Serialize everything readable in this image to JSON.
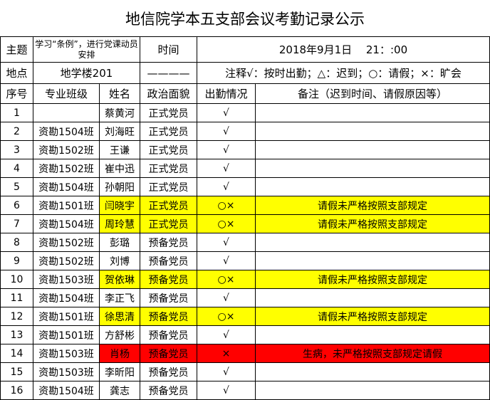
{
  "title": "地信院学本五支部会议考勤记录公示",
  "info": {
    "topic_label": "主题",
    "topic_value": "学习“条例”，进行党课动员安排",
    "time_label": "时间",
    "time_value": "2018年9月1日　 21：:00",
    "place_label": "地点",
    "place_value": "地学楼201",
    "dash": "————",
    "legend": "注释√：按时出勤；△：迟到；○：请假；×：旷会"
  },
  "headers": [
    "序号",
    "专业班级",
    "姓名",
    "政治面貌",
    "出勤情况",
    "备注（迟到时间、请假原因等）"
  ],
  "colors": {
    "highlight_yellow": "#ffff00",
    "highlight_red": "#ff0000"
  },
  "rows": [
    {
      "no": "1",
      "class": "",
      "name": "蔡黄河",
      "status": "正式党员",
      "attendance": "√",
      "remark": "",
      "highlight": ""
    },
    {
      "no": "2",
      "class": "资勘1504班",
      "name": "刘海旺",
      "status": "正式党员",
      "attendance": "√",
      "remark": "",
      "highlight": ""
    },
    {
      "no": "3",
      "class": "资勘1502班",
      "name": "王谦",
      "status": "正式党员",
      "attendance": "√",
      "remark": "",
      "highlight": ""
    },
    {
      "no": "4",
      "class": "资勘1502班",
      "name": "崔中迅",
      "status": "正式党员",
      "attendance": "√",
      "remark": "",
      "highlight": ""
    },
    {
      "no": "5",
      "class": "资勘1504班",
      "name": "孙朝阳",
      "status": "正式党员",
      "attendance": "√",
      "remark": "",
      "highlight": ""
    },
    {
      "no": "6",
      "class": "资勘1501班",
      "name": "闫晓宇",
      "status": "正式党员",
      "attendance": "○×",
      "remark": "请假未严格按照支部规定",
      "highlight": "yellow"
    },
    {
      "no": "7",
      "class": "资勘1504班",
      "name": "周玲慧",
      "status": "正式党员",
      "attendance": "○×",
      "remark": "请假未严格按照支部规定",
      "highlight": "yellow"
    },
    {
      "no": "8",
      "class": "资勘1502班",
      "name": "彭璐",
      "status": "预备党员",
      "attendance": "√",
      "remark": "",
      "highlight": ""
    },
    {
      "no": "9",
      "class": "资勘1502班",
      "name": "刘博",
      "status": "预备党员",
      "attendance": "√",
      "remark": "",
      "highlight": ""
    },
    {
      "no": "10",
      "class": "资勘1503班",
      "name": "贺依琳",
      "status": "预备党员",
      "attendance": "○×",
      "remark": "请假未严格按照支部规定",
      "highlight": "yellow"
    },
    {
      "no": "11",
      "class": "资勘1504班",
      "name": "李正飞",
      "status": "预备党员",
      "attendance": "√",
      "remark": "",
      "highlight": ""
    },
    {
      "no": "12",
      "class": "资勘1501班",
      "name": "徐思清",
      "status": "预备党员",
      "attendance": "○×",
      "remark": "请假未严格按照支部规定",
      "highlight": "yellow"
    },
    {
      "no": "13",
      "class": "资勘1501班",
      "name": "方舒彬",
      "status": "预备党员",
      "attendance": "√",
      "remark": "",
      "highlight": ""
    },
    {
      "no": "14",
      "class": "资勘1503班",
      "name": "肖杨",
      "status": "预备党员",
      "attendance": "×",
      "remark": "生病，未严格按照支部规定请假",
      "highlight": "red"
    },
    {
      "no": "15",
      "class": "资勘1503班",
      "name": "李昕阳",
      "status": "预备党员",
      "attendance": "√",
      "remark": "",
      "highlight": ""
    },
    {
      "no": "16",
      "class": "资勘1504班",
      "name": "龚志",
      "status": "预备党员",
      "attendance": "√",
      "remark": "",
      "highlight": ""
    }
  ]
}
